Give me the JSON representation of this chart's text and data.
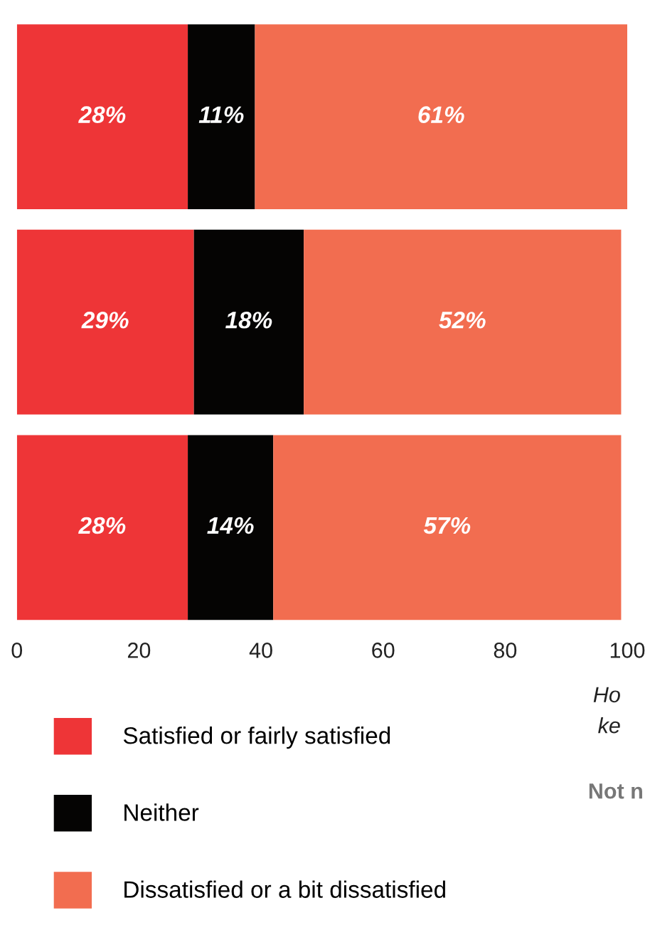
{
  "chart_data": {
    "type": "bar",
    "orientation": "horizontal",
    "stacked": true,
    "categories": [
      null,
      null,
      null
    ],
    "series": [
      {
        "name": "Satisfied or fairly satisfied",
        "color": "#ee3537",
        "values": [
          28,
          29,
          28
        ],
        "value_labels": [
          "28%",
          "29%",
          "28%"
        ]
      },
      {
        "name": "Neither",
        "color": "#050403",
        "values": [
          11,
          18,
          14
        ],
        "value_labels": [
          "11%",
          "18%",
          "14%"
        ]
      },
      {
        "name": "Dissatisfied or a bit dissatisfied",
        "color": "#f26d50",
        "values": [
          61,
          52,
          57
        ],
        "value_labels": [
          "61%",
          "52%",
          "57%"
        ]
      }
    ],
    "xlim": [
      0,
      100
    ],
    "xticks": [
      0,
      20,
      40,
      60,
      80,
      100
    ],
    "grid": false,
    "legend": "bottom",
    "annotations": [
      "Ho",
      "ke",
      "Not n"
    ]
  }
}
